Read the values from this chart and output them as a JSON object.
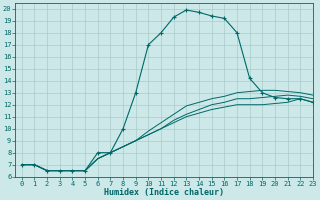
{
  "xlabel": "Humidex (Indice chaleur)",
  "bg_color": "#cce8e8",
  "line_color": "#006868",
  "grid_color": "#aacccc",
  "xlim": [
    -0.5,
    23
  ],
  "ylim": [
    6,
    20.5
  ],
  "xticks": [
    0,
    1,
    2,
    3,
    4,
    5,
    6,
    7,
    8,
    9,
    10,
    11,
    12,
    13,
    14,
    15,
    16,
    17,
    18,
    19,
    20,
    21,
    22,
    23
  ],
  "yticks": [
    6,
    7,
    8,
    9,
    10,
    11,
    12,
    13,
    14,
    15,
    16,
    17,
    18,
    19,
    20
  ],
  "line1_x": [
    0,
    1,
    2,
    3,
    4,
    5,
    6,
    7,
    8,
    9,
    10,
    11,
    12,
    13,
    14,
    15,
    16,
    17,
    18,
    19,
    20,
    21,
    22,
    23
  ],
  "line1_y": [
    7,
    7,
    6.5,
    6.5,
    6.5,
    6.5,
    8,
    8,
    10,
    13,
    17,
    18,
    19.3,
    19.9,
    19.7,
    19.4,
    19.2,
    18,
    14.2,
    13,
    12.6,
    12.5,
    12.5,
    12.2
  ],
  "line2_x": [
    0,
    1,
    2,
    3,
    4,
    5,
    6,
    7,
    8,
    9,
    10,
    11,
    12,
    13,
    14,
    15,
    16,
    17,
    18,
    19,
    20,
    21,
    22,
    23
  ],
  "line2_y": [
    7,
    7,
    6.5,
    6.5,
    6.5,
    6.5,
    7.5,
    8,
    8.5,
    9,
    9.5,
    10,
    10.5,
    11,
    11.3,
    11.6,
    11.8,
    12,
    12,
    12,
    12.1,
    12.2,
    12.5,
    12.2
  ],
  "line3_x": [
    0,
    1,
    2,
    3,
    4,
    5,
    6,
    7,
    8,
    9,
    10,
    11,
    12,
    13,
    14,
    15,
    16,
    17,
    18,
    19,
    20,
    21,
    22,
    23
  ],
  "line3_y": [
    7,
    7,
    6.5,
    6.5,
    6.5,
    6.5,
    7.5,
    8,
    8.5,
    9,
    9.5,
    10,
    10.7,
    11.2,
    11.6,
    12,
    12.2,
    12.5,
    12.5,
    12.6,
    12.7,
    12.8,
    12.7,
    12.5
  ],
  "line4_x": [
    0,
    1,
    2,
    3,
    4,
    5,
    6,
    7,
    8,
    9,
    10,
    11,
    12,
    13,
    14,
    15,
    16,
    17,
    18,
    19,
    20,
    21,
    22,
    23
  ],
  "line4_y": [
    7,
    7,
    6.5,
    6.5,
    6.5,
    6.5,
    7.5,
    8,
    8.5,
    9,
    9.8,
    10.5,
    11.2,
    11.9,
    12.2,
    12.5,
    12.7,
    13,
    13.1,
    13.2,
    13.2,
    13.1,
    13.0,
    12.8
  ],
  "tick_fontsize": 5,
  "xlabel_fontsize": 6
}
